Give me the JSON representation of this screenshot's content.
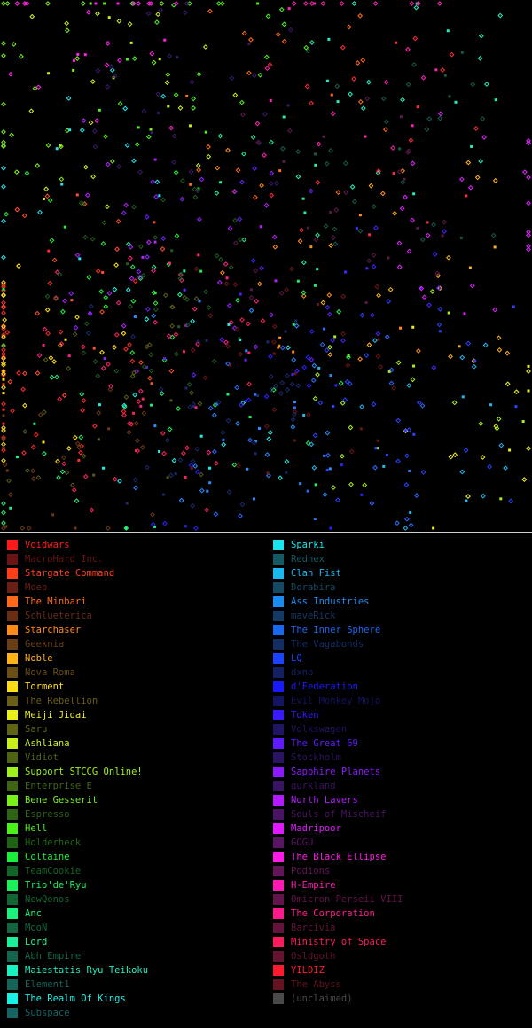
{
  "map": {
    "background": "#000000",
    "clusters": [
      {
        "faction": "Voidwars",
        "color": "#ff2a2a",
        "n": 46
      },
      {
        "faction": "Stargate Command",
        "color": "#ff4f2a",
        "n": 26
      },
      {
        "faction": "The Minbari",
        "color": "#ff6d1a",
        "n": 22
      },
      {
        "faction": "Starchaser",
        "color": "#ff8c1a",
        "n": 20
      },
      {
        "faction": "Noble",
        "color": "#ffb21a",
        "n": 22
      },
      {
        "faction": "Torment",
        "color": "#ffe01a",
        "n": 34
      },
      {
        "faction": "Meiji Jidai",
        "color": "#f0f01a",
        "n": 16
      },
      {
        "faction": "Ashliana",
        "color": "#caf01a",
        "n": 28
      },
      {
        "faction": "Support STCCG Online!",
        "color": "#a8f01a",
        "n": 24
      },
      {
        "faction": "Bene Gesserit",
        "color": "#7cf01a",
        "n": 30
      },
      {
        "faction": "Hell",
        "color": "#4cf01a",
        "n": 28
      },
      {
        "faction": "Coltaine",
        "color": "#22f03a",
        "n": 26
      },
      {
        "faction": "Trio'de'Ryu",
        "color": "#22f05a",
        "n": 18
      },
      {
        "faction": "Anc",
        "color": "#22f07a",
        "n": 20
      },
      {
        "faction": "Lord",
        "color": "#22f09a",
        "n": 18
      },
      {
        "faction": "Maiestatis Ryu Teikoku",
        "color": "#22f0c0",
        "n": 24
      },
      {
        "faction": "The Realm Of Kings",
        "color": "#22f0e8",
        "n": 22
      },
      {
        "faction": "Sparki",
        "color": "#22e6f0",
        "n": 18
      },
      {
        "faction": "Clan Fist",
        "color": "#22b8f0",
        "n": 20
      },
      {
        "faction": "Ass Industries",
        "color": "#2a8cff",
        "n": 30
      },
      {
        "faction": "The Inner Sphere",
        "color": "#2a6cff",
        "n": 30
      },
      {
        "faction": "LQ",
        "color": "#2a44ff",
        "n": 34
      },
      {
        "faction": "d'Federation",
        "color": "#2a22ff",
        "n": 18
      },
      {
        "faction": "Token",
        "color": "#4a22ff",
        "n": 22
      },
      {
        "faction": "The Great 69",
        "color": "#6a22ff",
        "n": 16
      },
      {
        "faction": "Sapphire Planets",
        "color": "#9222ff",
        "n": 20
      },
      {
        "faction": "North Lavers",
        "color": "#b622ff",
        "n": 22
      },
      {
        "faction": "Madripoor",
        "color": "#e022ff",
        "n": 26
      },
      {
        "faction": "The Black Ellipse",
        "color": "#ff22e6",
        "n": 24
      },
      {
        "faction": "H-Empire",
        "color": "#ff22b0",
        "n": 24
      },
      {
        "faction": "The Corporation",
        "color": "#ff2280",
        "n": 28
      },
      {
        "faction": "Ministry of Space",
        "color": "#ff2258",
        "n": 30
      },
      {
        "faction": "YILDIZ",
        "color": "#ff2a3a",
        "n": 20
      },
      {
        "faction": "dim-red",
        "color": "#6a1616",
        "n": 36
      },
      {
        "faction": "dim-orange",
        "color": "#6a3a16",
        "n": 30
      },
      {
        "faction": "dim-yellow",
        "color": "#5a5a16",
        "n": 28
      },
      {
        "faction": "dim-green",
        "color": "#1f5a1f",
        "n": 44
      },
      {
        "faction": "dim-teal",
        "color": "#165a4a",
        "n": 32
      },
      {
        "faction": "dim-blue",
        "color": "#1a2a6a",
        "n": 44
      },
      {
        "faction": "dim-purple",
        "color": "#3a1a6a",
        "n": 32
      },
      {
        "faction": "dim-magenta",
        "color": "#5a1a4a",
        "n": 30
      }
    ]
  },
  "legend": {
    "left": [
      {
        "name": "Voidwars",
        "color": "#ff1a1a"
      },
      {
        "name": "MacroHard Inc.",
        "color": "#6a1414"
      },
      {
        "name": "Stargate Command",
        "color": "#ff3f1a"
      },
      {
        "name": "Moep",
        "color": "#6a1f14"
      },
      {
        "name": "The Minbari",
        "color": "#ff6a1a"
      },
      {
        "name": "Schlueterica",
        "color": "#6a2e14"
      },
      {
        "name": "Starchaser",
        "color": "#ff8c1a"
      },
      {
        "name": "Geeknia",
        "color": "#6a3e14"
      },
      {
        "name": "Noble",
        "color": "#ffb21a"
      },
      {
        "name": "Nova Roma",
        "color": "#6a4e14"
      },
      {
        "name": "Torment",
        "color": "#ffdc1a"
      },
      {
        "name": "The Rebellion",
        "color": "#6a5e14"
      },
      {
        "name": "Meiji Jidai",
        "color": "#ebf01a"
      },
      {
        "name": "Saru",
        "color": "#5e6414"
      },
      {
        "name": "Ashliana",
        "color": "#c8f01a"
      },
      {
        "name": "Vidiot",
        "color": "#4e6414"
      },
      {
        "name": "Support STCCG Online!",
        "color": "#a0f01a"
      },
      {
        "name": "Enterprise E",
        "color": "#3e6414"
      },
      {
        "name": "Bene Gesserit",
        "color": "#78f01a"
      },
      {
        "name": "Espresso",
        "color": "#2e6414"
      },
      {
        "name": "Hell",
        "color": "#4cf01a"
      },
      {
        "name": "Holderheck",
        "color": "#1f6414"
      },
      {
        "name": "Coltaine",
        "color": "#1af03a"
      },
      {
        "name": "TeamCookie",
        "color": "#146428"
      },
      {
        "name": "Trio'de'Ryu",
        "color": "#1af05a"
      },
      {
        "name": "NewQonos",
        "color": "#146434"
      },
      {
        "name": "Anc",
        "color": "#1af07a"
      },
      {
        "name": "MooN",
        "color": "#146440"
      },
      {
        "name": "Lord",
        "color": "#1af09a"
      },
      {
        "name": "Abh Empire",
        "color": "#14644e"
      },
      {
        "name": "Maiestatis Ryu Teikoku",
        "color": "#1af0c0"
      },
      {
        "name": "Element1",
        "color": "#14645a"
      },
      {
        "name": "The Realm Of Kings",
        "color": "#1af0e8"
      },
      {
        "name": "Subspace",
        "color": "#146464"
      }
    ],
    "right": [
      {
        "name": "Sparki",
        "color": "#1ae6f0"
      },
      {
        "name": "Rednex",
        "color": "#145a64"
      },
      {
        "name": "Clan Fist",
        "color": "#1ab8f0"
      },
      {
        "name": "Dorabira",
        "color": "#144a64"
      },
      {
        "name": "Ass Industries",
        "color": "#1a8cf0"
      },
      {
        "name": "maveRick",
        "color": "#143a64"
      },
      {
        "name": "The Inner Sphere",
        "color": "#1a68f0"
      },
      {
        "name": "The Vagabonds",
        "color": "#142e64"
      },
      {
        "name": "LQ",
        "color": "#1a44ff"
      },
      {
        "name": "dxno",
        "color": "#142064"
      },
      {
        "name": "d'Federation",
        "color": "#1a1aff"
      },
      {
        "name": "Evil Monkey Mojo",
        "color": "#141464"
      },
      {
        "name": "Token",
        "color": "#3a1aff"
      },
      {
        "name": "Volkswagen",
        "color": "#201464"
      },
      {
        "name": "The Great 69",
        "color": "#601aff"
      },
      {
        "name": "Stockholm",
        "color": "#2c1464"
      },
      {
        "name": "Sapphire Planets",
        "color": "#8c1aff"
      },
      {
        "name": "gurkland",
        "color": "#3a1464"
      },
      {
        "name": "North Lavers",
        "color": "#b41aff"
      },
      {
        "name": "Souls of Mischeif",
        "color": "#4a1464"
      },
      {
        "name": "Madripoor",
        "color": "#e01aff"
      },
      {
        "name": "GOGU",
        "color": "#5a1464"
      },
      {
        "name": "The Black Ellipse",
        "color": "#ff1ae6"
      },
      {
        "name": "Podions",
        "color": "#641458"
      },
      {
        "name": "H-Empire",
        "color": "#ff1ab4"
      },
      {
        "name": "Omicron Perseii VIII",
        "color": "#64144a"
      },
      {
        "name": "The Corporation",
        "color": "#ff1a8c"
      },
      {
        "name": "Barcivia",
        "color": "#64143a"
      },
      {
        "name": "Ministry of Space",
        "color": "#ff1a5e"
      },
      {
        "name": "Osldgoth",
        "color": "#641430"
      },
      {
        "name": "YILDIZ",
        "color": "#ff1a30"
      },
      {
        "name": "The Abyss",
        "color": "#641420"
      },
      {
        "name": "(unclaimed)",
        "color": "#4a4a4a"
      }
    ]
  }
}
